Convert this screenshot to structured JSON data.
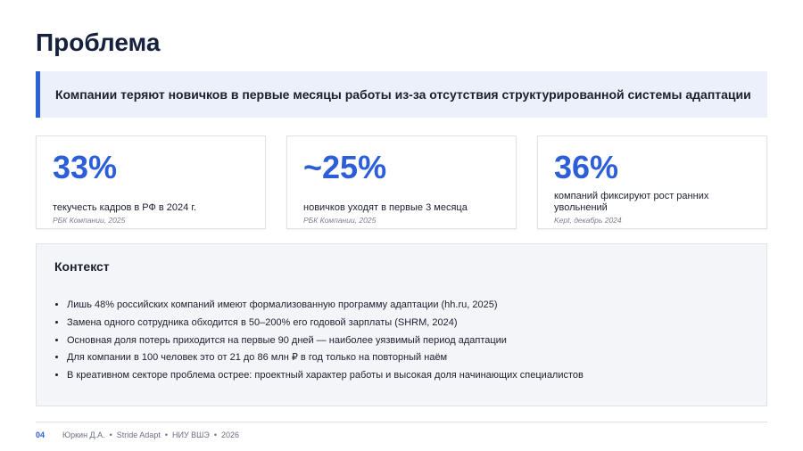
{
  "header": {
    "title": "Проблема"
  },
  "banner": {
    "text": "Компании теряют новичков в первые месяцы работы из-за отсутствия структурированной системы адаптации"
  },
  "cards": [
    {
      "value": "33%",
      "description": "текучесть кадров в РФ в 2024 г.",
      "source": "РБК Компании, 2025"
    },
    {
      "value": "~25%",
      "description": "новичков уходят в первые 3 месяца",
      "source": "РБК Компании, 2025"
    },
    {
      "value": "36%",
      "description": "компаний фиксируют рост ранних увольнений",
      "source": "Kept, декабрь 2024"
    }
  ],
  "context": {
    "title": "Контекст",
    "items": [
      "Лишь 48% российских компаний имеют формализованную программу адаптации (hh.ru, 2025)",
      "Замена одного сотрудника обходится в 50–200% его годовой зарплаты (SHRM, 2024)",
      "Основная доля потерь приходится на первые 90 дней — наиболее уязвимый период адаптации",
      "Для компании в 100 человек это от 21 до 86 млн ₽ в год только на повторный наём",
      "В креативном секторе проблема острее: проектный характер работы и высокая доля начинающих специалистов"
    ]
  },
  "footer": {
    "page": "04",
    "text": "Юркин Д.А.  •  Stride Adapt  •  НИУ ВШЭ  •  2026"
  }
}
